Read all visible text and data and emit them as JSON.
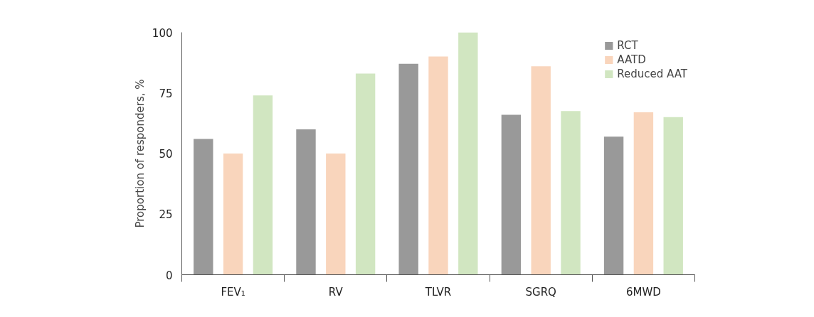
{
  "chart_data": {
    "type": "bar",
    "ylabel": "Proportion of responders, %",
    "categories": [
      "FEV₁",
      "RV",
      "TLVR",
      "SGRQ",
      "6MWD"
    ],
    "series": [
      {
        "name": "RCT",
        "color": "#999999",
        "values": [
          56,
          60,
          87,
          66,
          57
        ]
      },
      {
        "name": "AATD",
        "color": "#f9d5bc",
        "values": [
          50,
          50,
          90,
          86,
          67
        ]
      },
      {
        "name": "Reduced AAT",
        "color": "#d1e6c1",
        "values": [
          74,
          83,
          100,
          67.5,
          65
        ]
      }
    ],
    "ylim": [
      0,
      100
    ],
    "yticks": [
      0,
      25,
      50,
      75,
      100
    ],
    "legend": "top right"
  }
}
